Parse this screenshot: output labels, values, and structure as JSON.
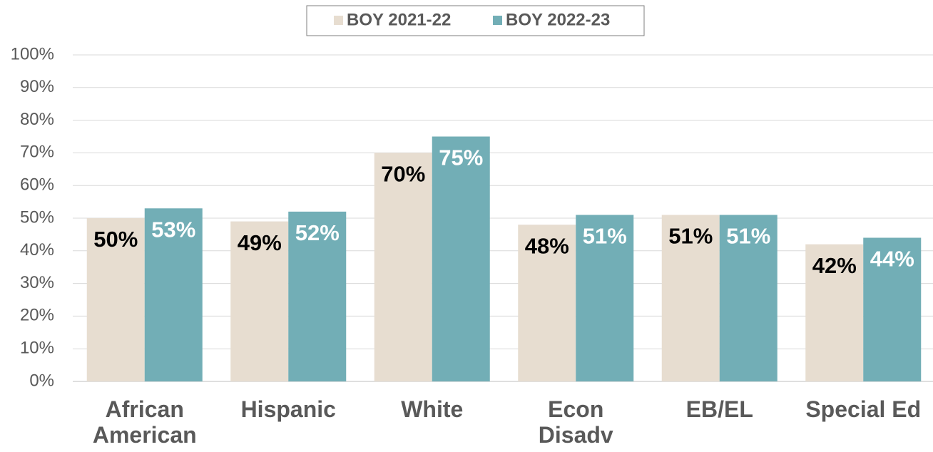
{
  "chart_data": {
    "type": "bar",
    "categories": [
      "African\nAmerican",
      "Hispanic",
      "White",
      "Econ\nDisadv",
      "EB/EL",
      "Special Ed"
    ],
    "series": [
      {
        "name": "BOY 2021-22",
        "color": "#e7ddd0",
        "values": [
          50,
          49,
          70,
          48,
          51,
          42
        ],
        "value_labels": [
          "50%",
          "49%",
          "70%",
          "48%",
          "51%",
          "42%"
        ]
      },
      {
        "name": "BOY 2022-23",
        "color": "#72aeb6",
        "values": [
          53,
          52,
          75,
          51,
          51,
          44
        ],
        "value_labels": [
          "53%",
          "52%",
          "75%",
          "51%",
          "51%",
          "44%"
        ]
      }
    ],
    "ylim": [
      0,
      100
    ],
    "yticks": [
      {
        "value": 0,
        "label": "0%"
      },
      {
        "value": 10,
        "label": "10%"
      },
      {
        "value": 20,
        "label": "20%"
      },
      {
        "value": 30,
        "label": "30%"
      },
      {
        "value": 40,
        "label": "40%"
      },
      {
        "value": 50,
        "label": "50%"
      },
      {
        "value": 60,
        "label": "60%"
      },
      {
        "value": 70,
        "label": "70%"
      },
      {
        "value": 80,
        "label": "80%"
      },
      {
        "value": 90,
        "label": "90%"
      },
      {
        "value": 100,
        "label": "100%"
      }
    ],
    "grid": true,
    "legend": "top"
  }
}
